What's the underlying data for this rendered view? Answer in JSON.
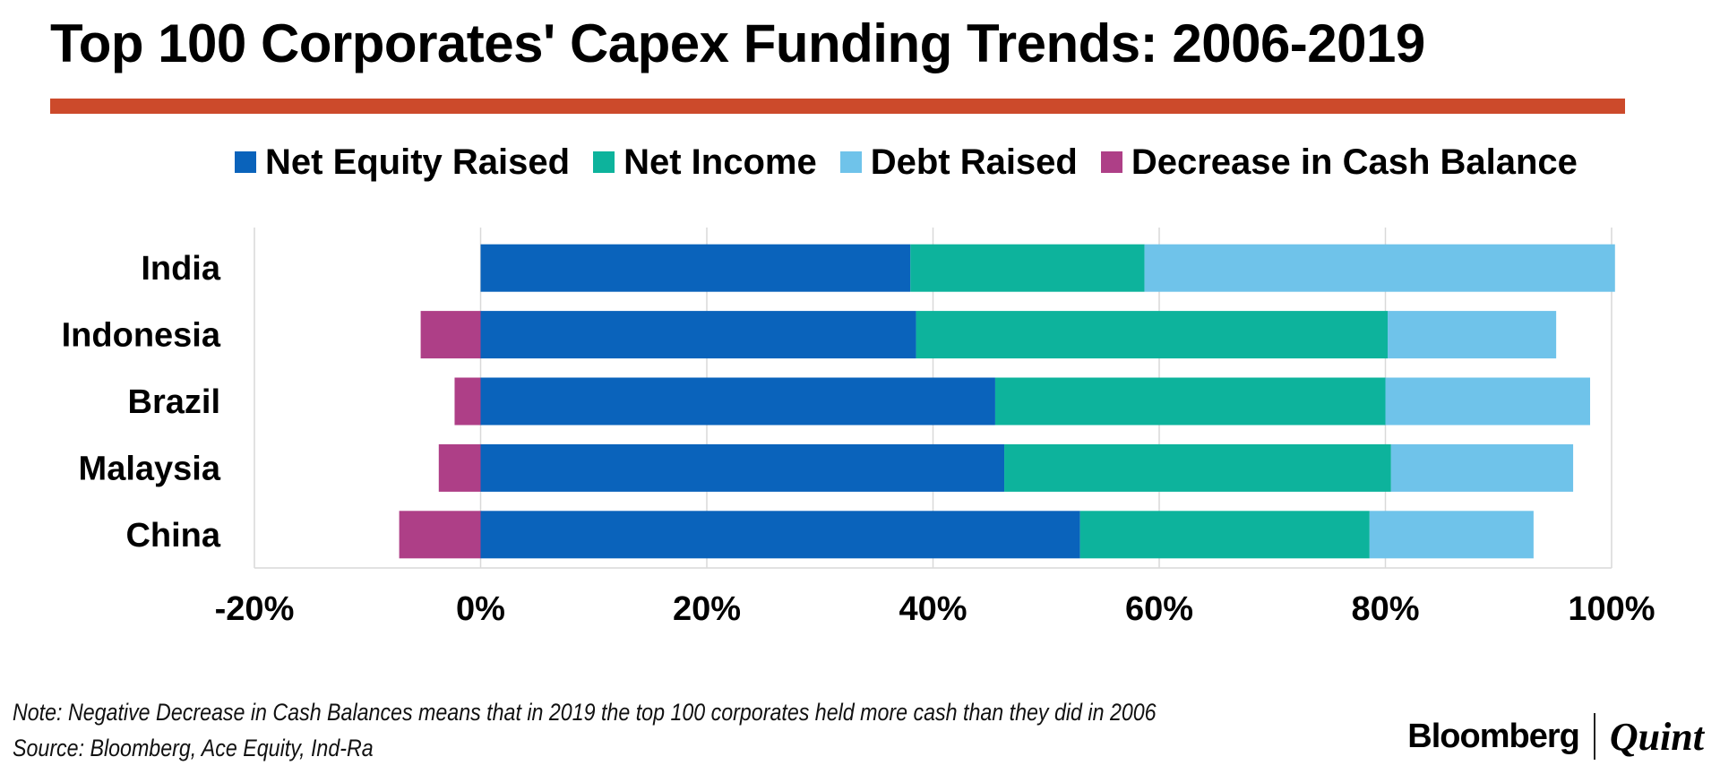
{
  "title": "Top 100 Corporates' Capex Funding Trends: 2006-2019",
  "colors": {
    "accent_rule": "#cc4a2b",
    "net_equity": "#0a63bb",
    "net_income": "#0db39c",
    "debt": "#6fc3ea",
    "cash": "#ae3f87",
    "grid": "#d9d9d9"
  },
  "chart_data": {
    "type": "bar",
    "orientation": "horizontal",
    "stacked": true,
    "categories": [
      "India",
      "Indonesia",
      "Brazil",
      "Malaysia",
      "China"
    ],
    "series": [
      {
        "name": "Net Equity Raised",
        "color": "#0a63bb",
        "values": [
          38,
          38.5,
          45.5,
          46.3,
          53
        ]
      },
      {
        "name": "Net Income",
        "color": "#0db39c",
        "values": [
          20.7,
          41.7,
          34.5,
          34.2,
          25.6
        ]
      },
      {
        "name": "Debt Raised",
        "color": "#6fc3ea",
        "values": [
          41.6,
          14.9,
          18.1,
          16.1,
          14.5
        ]
      },
      {
        "name": "Decrease in Cash Balance",
        "color": "#ae3f87",
        "values": [
          0,
          -5.3,
          -2.3,
          -3.7,
          -7.2
        ]
      }
    ],
    "xlim": [
      -20,
      100
    ],
    "xticks": [
      "-20%",
      "0%",
      "20%",
      "40%",
      "60%",
      "80%",
      "100%"
    ],
    "xtick_values": [
      -20,
      0,
      20,
      40,
      60,
      80,
      100
    ],
    "grid": true,
    "legend_position": "top"
  },
  "notes": {
    "note": "Note: Negative Decrease in Cash Balances means that in 2019 the top 100 corporates held more cash than they did in 2006",
    "source": "Source: Bloomberg, Ace Equity, Ind-Ra"
  },
  "brand": {
    "left": "Bloomberg",
    "right": "Quint"
  }
}
